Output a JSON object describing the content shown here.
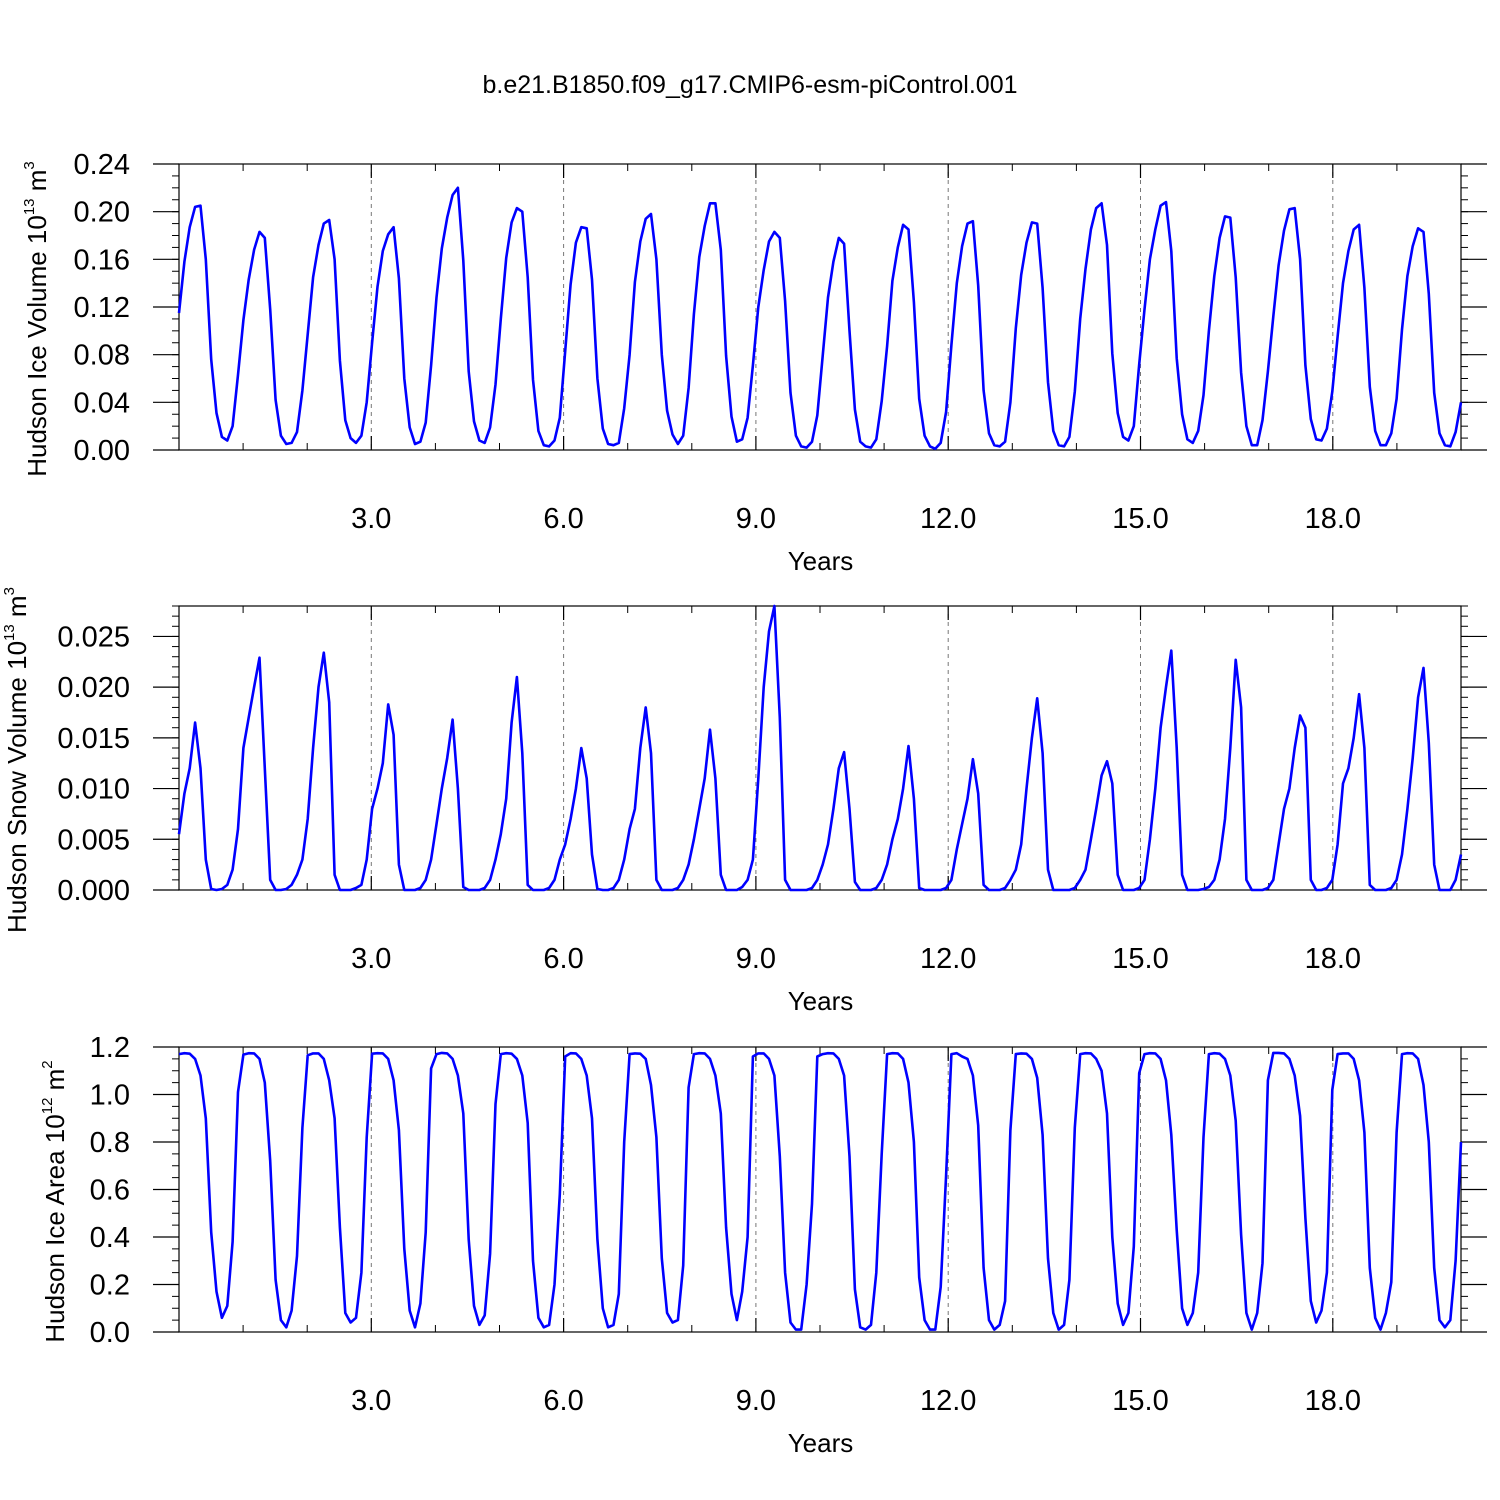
{
  "title": "b.e21.B1850.f09_g17.CMIP6-esm-piControl.001",
  "series_color": "#0000ff",
  "chart_data": [
    {
      "type": "line",
      "ylabel": {
        "main": "Hudson Ice Volume 10",
        "exp": "13",
        "unit": " m",
        "unit_exp": "3"
      },
      "xlabel": "Years",
      "xlim": [
        0,
        20
      ],
      "ylim": [
        0.0,
        0.24
      ],
      "x_ticks": [
        "3.0",
        "6.0",
        "9.0",
        "12.0",
        "15.0",
        "18.0"
      ],
      "y_ticks": [
        "0.00",
        "0.04",
        "0.08",
        "0.12",
        "0.16",
        "0.20",
        "0.24"
      ],
      "grid": "vertical dashed at 3-year ticks",
      "series": [
        {
          "values": [
            0.115,
            0.158,
            0.187,
            0.204,
            0.205,
            0.16,
            0.076,
            0.031,
            0.011,
            0.008,
            0.02,
            0.063,
            0.109,
            0.143,
            0.168,
            0.183,
            0.178,
            0.118,
            0.042,
            0.012,
            0.005,
            0.006,
            0.015,
            0.05,
            0.097,
            0.145,
            0.172,
            0.19,
            0.193,
            0.16,
            0.075,
            0.025,
            0.01,
            0.006,
            0.012,
            0.04,
            0.09,
            0.137,
            0.167,
            0.181,
            0.187,
            0.144,
            0.06,
            0.019,
            0.005,
            0.007,
            0.023,
            0.071,
            0.128,
            0.169,
            0.195,
            0.214,
            0.22,
            0.159,
            0.066,
            0.024,
            0.008,
            0.006,
            0.019,
            0.055,
            0.11,
            0.161,
            0.191,
            0.203,
            0.2,
            0.145,
            0.059,
            0.016,
            0.004,
            0.003,
            0.008,
            0.027,
            0.083,
            0.139,
            0.174,
            0.187,
            0.186,
            0.143,
            0.06,
            0.018,
            0.005,
            0.004,
            0.006,
            0.035,
            0.08,
            0.141,
            0.175,
            0.194,
            0.198,
            0.16,
            0.08,
            0.033,
            0.013,
            0.005,
            0.012,
            0.052,
            0.114,
            0.162,
            0.188,
            0.207,
            0.207,
            0.168,
            0.079,
            0.028,
            0.007,
            0.009,
            0.027,
            0.071,
            0.12,
            0.151,
            0.175,
            0.183,
            0.178,
            0.125,
            0.048,
            0.012,
            0.003,
            0.002,
            0.007,
            0.029,
            0.079,
            0.128,
            0.158,
            0.178,
            0.173,
            0.1,
            0.034,
            0.007,
            0.003,
            0.002,
            0.009,
            0.041,
            0.087,
            0.142,
            0.17,
            0.189,
            0.185,
            0.124,
            0.043,
            0.012,
            0.003,
            0.001,
            0.006,
            0.032,
            0.088,
            0.14,
            0.171,
            0.19,
            0.192,
            0.138,
            0.05,
            0.014,
            0.004,
            0.003,
            0.007,
            0.04,
            0.102,
            0.147,
            0.174,
            0.191,
            0.19,
            0.136,
            0.057,
            0.016,
            0.004,
            0.003,
            0.011,
            0.049,
            0.11,
            0.152,
            0.185,
            0.203,
            0.207,
            0.172,
            0.081,
            0.031,
            0.011,
            0.008,
            0.02,
            0.072,
            0.118,
            0.16,
            0.185,
            0.205,
            0.208,
            0.167,
            0.077,
            0.03,
            0.009,
            0.006,
            0.016,
            0.046,
            0.1,
            0.146,
            0.178,
            0.196,
            0.195,
            0.145,
            0.065,
            0.02,
            0.004,
            0.004,
            0.025,
            0.066,
            0.112,
            0.155,
            0.184,
            0.202,
            0.203,
            0.16,
            0.071,
            0.026,
            0.009,
            0.008,
            0.018,
            0.049,
            0.095,
            0.14,
            0.167,
            0.185,
            0.189,
            0.136,
            0.053,
            0.016,
            0.004,
            0.004,
            0.014,
            0.043,
            0.101,
            0.146,
            0.171,
            0.186,
            0.183,
            0.131,
            0.048,
            0.014,
            0.004,
            0.003,
            0.015,
            0.04
          ]
        }
      ]
    },
    {
      "type": "line",
      "ylabel": {
        "main": "Hudson Snow Volume 10",
        "exp": "13",
        "unit": " m",
        "unit_exp": "3"
      },
      "xlabel": "Years",
      "xlim": [
        0,
        20
      ],
      "ylim": [
        0.0,
        0.028
      ],
      "x_ticks": [
        "3.0",
        "6.0",
        "9.0",
        "12.0",
        "15.0",
        "18.0"
      ],
      "y_ticks": [
        "0.000",
        "0.005",
        "0.010",
        "0.015",
        "0.020",
        "0.025"
      ],
      "grid": "vertical dashed at 3-year ticks",
      "series": [
        {
          "values": [
            0.0055,
            0.0095,
            0.012,
            0.0165,
            0.012,
            0.003,
            0.0001,
            0.0,
            0.0001,
            0.0005,
            0.002,
            0.006,
            0.014,
            0.017,
            0.02,
            0.0229,
            0.012,
            0.001,
            0.0,
            0.0,
            0.0001,
            0.0005,
            0.0015,
            0.003,
            0.007,
            0.014,
            0.02,
            0.0234,
            0.0185,
            0.0015,
            0.0,
            0.0,
            0.0,
            0.0002,
            0.0005,
            0.003,
            0.008,
            0.01,
            0.0125,
            0.0183,
            0.0153,
            0.0025,
            0.0,
            0.0,
            0.0,
            0.0002,
            0.001,
            0.003,
            0.0065,
            0.01,
            0.013,
            0.0168,
            0.01,
            0.0003,
            0.0,
            0.0,
            0.0,
            0.0002,
            0.001,
            0.003,
            0.0055,
            0.009,
            0.0165,
            0.021,
            0.0135,
            0.0005,
            0.0,
            0.0,
            0.0,
            0.0002,
            0.001,
            0.003,
            0.0045,
            0.007,
            0.01,
            0.014,
            0.011,
            0.0035,
            0.0001,
            0.0,
            0.0,
            0.0002,
            0.001,
            0.003,
            0.006,
            0.008,
            0.014,
            0.018,
            0.0135,
            0.001,
            0.0,
            0.0,
            0.0,
            0.0002,
            0.001,
            0.0025,
            0.005,
            0.008,
            0.011,
            0.0158,
            0.011,
            0.0015,
            0.0,
            0.0,
            0.0,
            0.0003,
            0.001,
            0.003,
            0.011,
            0.02,
            0.0255,
            0.028,
            0.017,
            0.001,
            0.0,
            0.0,
            0.0,
            0.0,
            0.0002,
            0.001,
            0.0025,
            0.0045,
            0.008,
            0.012,
            0.0136,
            0.008,
            0.0008,
            0.0,
            0.0,
            0.0,
            0.0002,
            0.001,
            0.0025,
            0.005,
            0.007,
            0.01,
            0.0142,
            0.009,
            0.0002,
            0.0,
            0.0,
            0.0,
            0.0,
            0.0002,
            0.001,
            0.004,
            0.0065,
            0.009,
            0.0129,
            0.0095,
            0.0005,
            0.0,
            0.0,
            0.0,
            0.0002,
            0.001,
            0.002,
            0.0045,
            0.01,
            0.015,
            0.0189,
            0.0135,
            0.002,
            0.0,
            0.0,
            0.0,
            0.0,
            0.0002,
            0.001,
            0.002,
            0.005,
            0.008,
            0.0113,
            0.0127,
            0.0105,
            0.0015,
            0.0,
            0.0,
            0.0,
            0.0002,
            0.001,
            0.005,
            0.01,
            0.016,
            0.02,
            0.0236,
            0.014,
            0.0015,
            0.0,
            0.0,
            0.0,
            0.0001,
            0.0003,
            0.001,
            0.003,
            0.007,
            0.014,
            0.0227,
            0.018,
            0.001,
            0.0,
            0.0,
            0.0,
            0.0002,
            0.001,
            0.0045,
            0.008,
            0.01,
            0.014,
            0.0172,
            0.016,
            0.001,
            0.0,
            0.0,
            0.0002,
            0.001,
            0.0045,
            0.0105,
            0.012,
            0.015,
            0.0193,
            0.014,
            0.0005,
            0.0,
            0.0,
            0.0,
            0.0002,
            0.001,
            0.0035,
            0.008,
            0.013,
            0.019,
            0.0219,
            0.0145,
            0.0025,
            0.0,
            0.0,
            0.0,
            0.001,
            0.0035
          ]
        }
      ]
    },
    {
      "type": "line",
      "ylabel": {
        "main": "Hudson Ice Area 10",
        "exp": "12",
        "unit": " m",
        "unit_exp": "2"
      },
      "xlabel": "Years",
      "xlim": [
        0,
        20
      ],
      "ylim": [
        0.0,
        1.2
      ],
      "x_ticks": [
        "3.0",
        "6.0",
        "9.0",
        "12.0",
        "15.0",
        "18.0"
      ],
      "y_ticks": [
        "0.0",
        "0.2",
        "0.4",
        "0.6",
        "0.8",
        "1.0",
        "1.2"
      ],
      "grid": "vertical dashed at 3-year ticks",
      "series": [
        {
          "values": [
            1.17,
            1.174,
            1.172,
            1.15,
            1.08,
            0.9,
            0.42,
            0.17,
            0.06,
            0.11,
            0.38,
            1.01,
            1.168,
            1.174,
            1.173,
            1.15,
            1.05,
            0.72,
            0.22,
            0.05,
            0.02,
            0.09,
            0.32,
            0.86,
            1.165,
            1.173,
            1.173,
            1.15,
            1.06,
            0.9,
            0.44,
            0.08,
            0.04,
            0.06,
            0.25,
            0.82,
            1.172,
            1.174,
            1.173,
            1.15,
            1.06,
            0.85,
            0.35,
            0.09,
            0.02,
            0.12,
            0.42,
            1.11,
            1.17,
            1.175,
            1.173,
            1.15,
            1.08,
            0.92,
            0.39,
            0.11,
            0.03,
            0.07,
            0.33,
            0.96,
            1.17,
            1.174,
            1.172,
            1.15,
            1.08,
            0.88,
            0.3,
            0.06,
            0.02,
            0.03,
            0.2,
            0.58,
            1.16,
            1.174,
            1.173,
            1.15,
            1.08,
            0.9,
            0.39,
            0.1,
            0.02,
            0.03,
            0.16,
            0.8,
            1.17,
            1.173,
            1.172,
            1.15,
            1.04,
            0.82,
            0.31,
            0.08,
            0.04,
            0.05,
            0.28,
            1.03,
            1.17,
            1.174,
            1.173,
            1.15,
            1.08,
            0.92,
            0.44,
            0.16,
            0.05,
            0.17,
            0.4,
            1.16,
            1.173,
            1.173,
            1.15,
            1.08,
            0.74,
            0.25,
            0.04,
            0.01,
            0.01,
            0.2,
            0.54,
            1.16,
            1.17,
            1.174,
            1.173,
            1.15,
            1.08,
            0.74,
            0.18,
            0.02,
            0.01,
            0.03,
            0.25,
            0.75,
            1.17,
            1.174,
            1.173,
            1.15,
            1.05,
            0.8,
            0.23,
            0.05,
            0.01,
            0.01,
            0.19,
            0.66,
            1.17,
            1.174,
            1.16,
            1.15,
            1.08,
            0.87,
            0.27,
            0.05,
            0.01,
            0.03,
            0.13,
            0.85,
            1.17,
            1.173,
            1.172,
            1.15,
            1.07,
            0.83,
            0.31,
            0.08,
            0.01,
            0.03,
            0.22,
            0.86,
            1.17,
            1.174,
            1.173,
            1.15,
            1.1,
            0.92,
            0.4,
            0.12,
            0.03,
            0.08,
            0.36,
            1.09,
            1.17,
            1.174,
            1.173,
            1.15,
            1.06,
            0.83,
            0.43,
            0.1,
            0.03,
            0.08,
            0.25,
            0.82,
            1.17,
            1.174,
            1.172,
            1.15,
            1.08,
            0.89,
            0.41,
            0.08,
            0.01,
            0.08,
            0.29,
            1.06,
            1.175,
            1.175,
            1.173,
            1.15,
            1.08,
            0.91,
            0.48,
            0.13,
            0.04,
            0.09,
            0.25,
            1.02,
            1.17,
            1.173,
            1.173,
            1.15,
            1.06,
            0.84,
            0.27,
            0.06,
            0.01,
            0.08,
            0.21,
            0.84,
            1.17,
            1.174,
            1.173,
            1.15,
            1.04,
            0.8,
            0.27,
            0.05,
            0.02,
            0.05,
            0.3,
            0.8
          ]
        }
      ]
    }
  ]
}
